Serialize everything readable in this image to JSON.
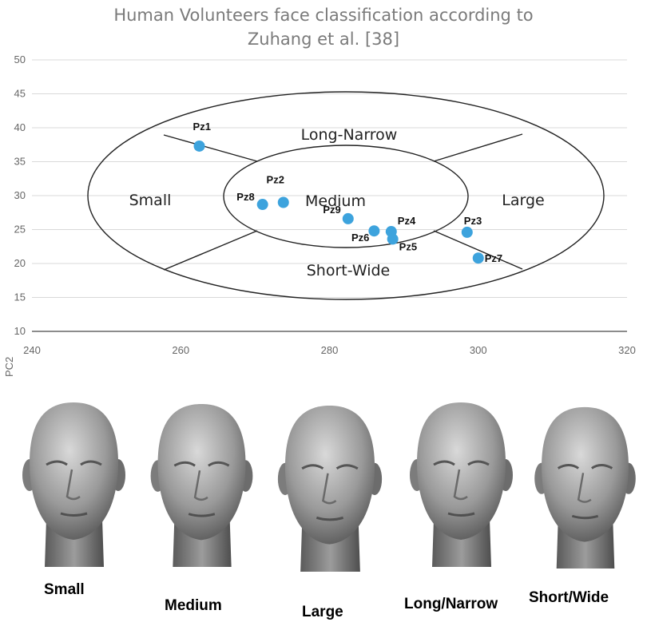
{
  "title": {
    "line1": "Human Volunteers face classification according to",
    "line2": "Zuhang et al. [38]"
  },
  "chart_data": {
    "type": "scatter",
    "title": "Human Volunteers face classification according to Zuhang et al. [38]",
    "ylabel": "PC2",
    "xlim": [
      240,
      320
    ],
    "ylim": [
      10,
      50
    ],
    "xticks": [
      240,
      260,
      280,
      300,
      320
    ],
    "yticks": [
      10,
      15,
      20,
      25,
      30,
      35,
      40,
      45,
      50
    ],
    "grid": "horizontal",
    "point_color": "#3da3dd",
    "points": [
      {
        "label": "Pz1",
        "x": 262.5,
        "y": 37.3
      },
      {
        "label": "Pz2",
        "x": 273.8,
        "y": 29.0
      },
      {
        "label": "Pz8",
        "x": 271.0,
        "y": 28.7
      },
      {
        "label": "Pz9",
        "x": 282.5,
        "y": 26.6
      },
      {
        "label": "Pz4",
        "x": 288.3,
        "y": 24.7
      },
      {
        "label": "Pz6",
        "x": 286.0,
        "y": 24.8
      },
      {
        "label": "Pz5",
        "x": 288.5,
        "y": 23.6
      },
      {
        "label": "Pz3",
        "x": 298.5,
        "y": 24.6
      },
      {
        "label": "Pz7",
        "x": 300.0,
        "y": 20.8
      }
    ],
    "regions": [
      "Long-Narrow",
      "Small",
      "Medium",
      "Large",
      "Short-Wide"
    ]
  },
  "faces": [
    {
      "caption": "Small",
      "icon": "head-icon"
    },
    {
      "caption": "Medium",
      "icon": "head-icon"
    },
    {
      "caption": "Large",
      "icon": "head-icon"
    },
    {
      "caption": "Long/Narrow",
      "icon": "head-icon"
    },
    {
      "caption": "Short/Wide",
      "icon": "head-icon"
    }
  ]
}
